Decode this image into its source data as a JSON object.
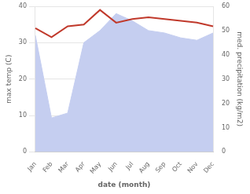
{
  "chart_data": {
    "type": "line",
    "xlabel": "date (month)",
    "ylabel": "max temp (C)",
    "y2label": "med. precipitation (kg/m2)",
    "categories": [
      "Jan",
      "Feb",
      "Mar",
      "Apr",
      "May",
      "Jun",
      "Jul",
      "Aug",
      "Sep",
      "Oct",
      "Nov",
      "Dec"
    ],
    "series": [
      {
        "type": "area",
        "axis": "y2",
        "color": "#c5cef0",
        "values": [
          48.0,
          14.0,
          16.0,
          45.0,
          50.0,
          57.0,
          54.0,
          50.0,
          49.0,
          47.0,
          46.0,
          49.0
        ]
      },
      {
        "type": "line",
        "color": "#c0392b",
        "values": [
          34.0,
          31.5,
          34.5,
          35.0,
          39.0,
          35.5,
          36.5,
          37.0,
          36.5,
          36.0,
          35.5,
          34.5
        ]
      }
    ],
    "ylim": [
      0,
      40
    ],
    "yticks": [
      0,
      10,
      20,
      30,
      40
    ],
    "y2lim": [
      0,
      60
    ],
    "y2ticks": [
      0,
      10,
      20,
      30,
      40,
      50,
      60
    ],
    "grid": true
  }
}
